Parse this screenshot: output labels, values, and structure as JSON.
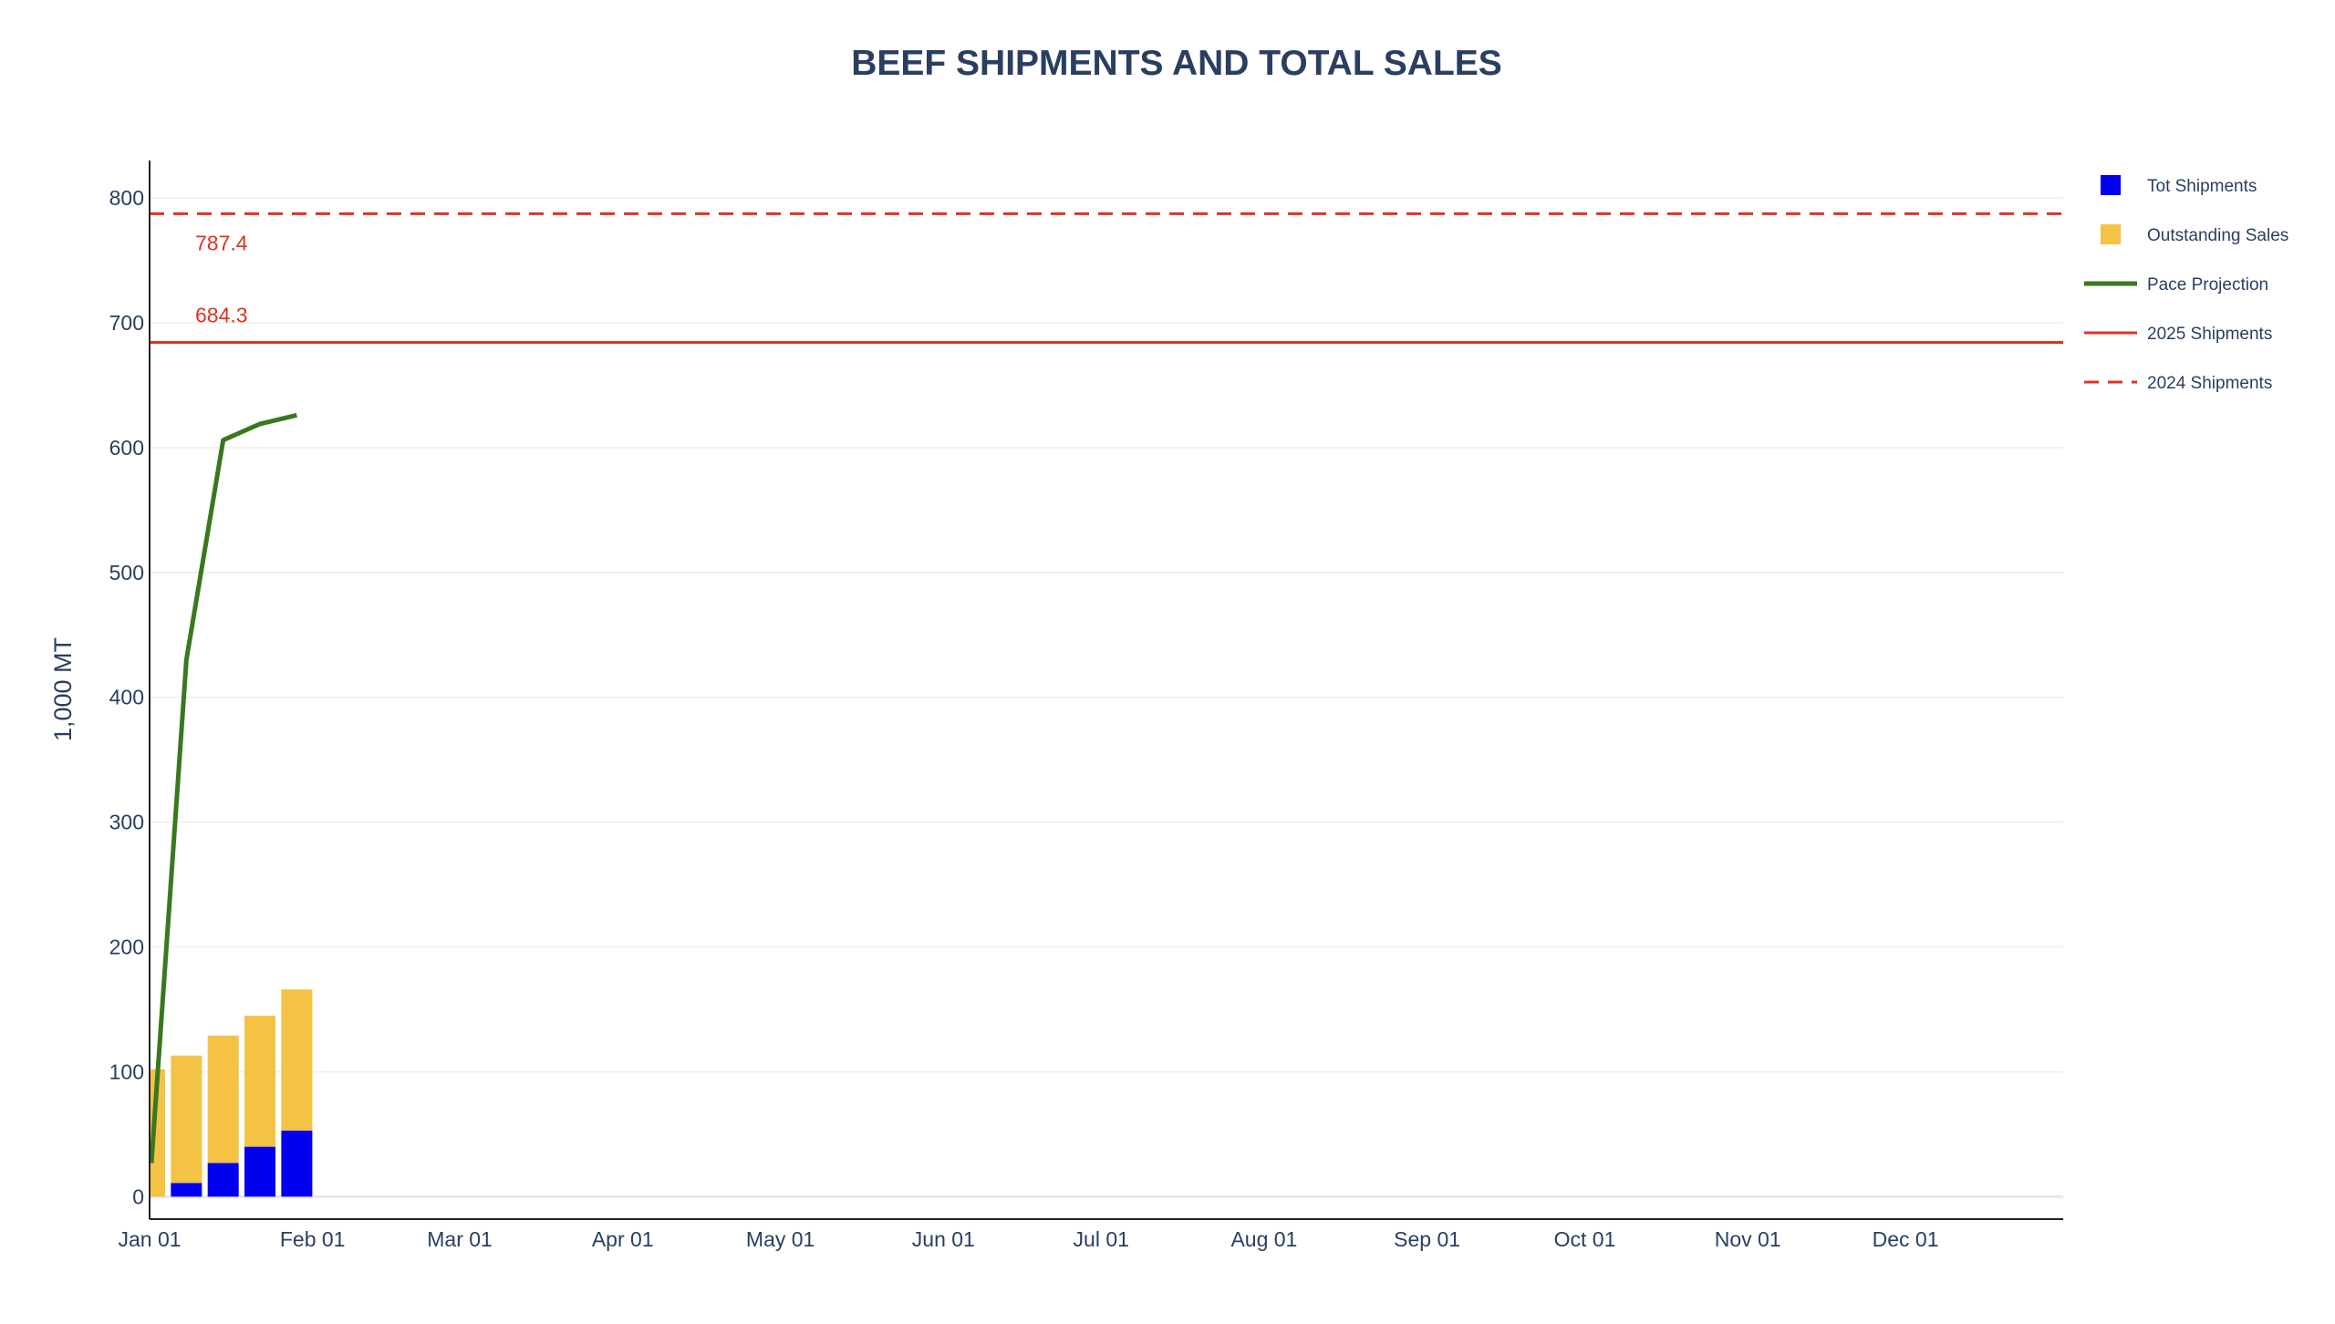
{
  "chart_data": {
    "type": "bar",
    "title": "BEEF SHIPMENTS AND TOTAL SALES",
    "xlabel": "",
    "ylabel": "1,000 MT",
    "ylim": [
      -18,
      830
    ],
    "xlim": [
      "2025-01-01",
      "2025-12-31"
    ],
    "y_ticks": [
      0,
      100,
      200,
      300,
      400,
      500,
      600,
      700,
      800
    ],
    "x_ticks": [
      {
        "date": "2025-01-01",
        "label": "Jan 01"
      },
      {
        "date": "2025-02-01",
        "label": "Feb 01"
      },
      {
        "date": "2025-03-01",
        "label": "Mar 01"
      },
      {
        "date": "2025-04-01",
        "label": "Apr 01"
      },
      {
        "date": "2025-05-01",
        "label": "May 01"
      },
      {
        "date": "2025-06-01",
        "label": "Jun 01"
      },
      {
        "date": "2025-07-01",
        "label": "Jul 01"
      },
      {
        "date": "2025-08-01",
        "label": "Aug 01"
      },
      {
        "date": "2025-09-01",
        "label": "Sep 01"
      },
      {
        "date": "2025-10-01",
        "label": "Oct 01"
      },
      {
        "date": "2025-11-01",
        "label": "Nov 01"
      },
      {
        "date": "2025-12-01",
        "label": "Dec 01"
      }
    ],
    "grid": true,
    "barmode": "stack",
    "legend_position": "right",
    "bar_dates": [
      "2025-01-01",
      "2025-01-08",
      "2025-01-15",
      "2025-01-22",
      "2025-01-29"
    ],
    "series": [
      {
        "name": "Tot Shipments",
        "kind": "bar",
        "color": "#0000ee",
        "values": [
          0,
          11,
          27,
          40,
          53
        ]
      },
      {
        "name": "Outstanding Sales",
        "kind": "bar",
        "color": "#f4c245",
        "values": [
          102,
          102,
          102,
          105,
          113
        ]
      },
      {
        "name": "Pace Projection",
        "kind": "line",
        "color": "#38781e",
        "x": [
          "2025-01-01",
          "2025-01-08",
          "2025-01-15",
          "2025-01-22",
          "2025-01-29"
        ],
        "values": [
          27,
          430,
          606,
          619,
          626
        ]
      },
      {
        "name": "2025 Shipments",
        "kind": "hline",
        "color": "#dd3322",
        "dash": "solid",
        "value": 684.3,
        "label": "684.3"
      },
      {
        "name": "2024 Shipments",
        "kind": "hline",
        "color": "#dd3322",
        "dash": "dash",
        "value": 787.4,
        "label": "787.4"
      }
    ]
  }
}
